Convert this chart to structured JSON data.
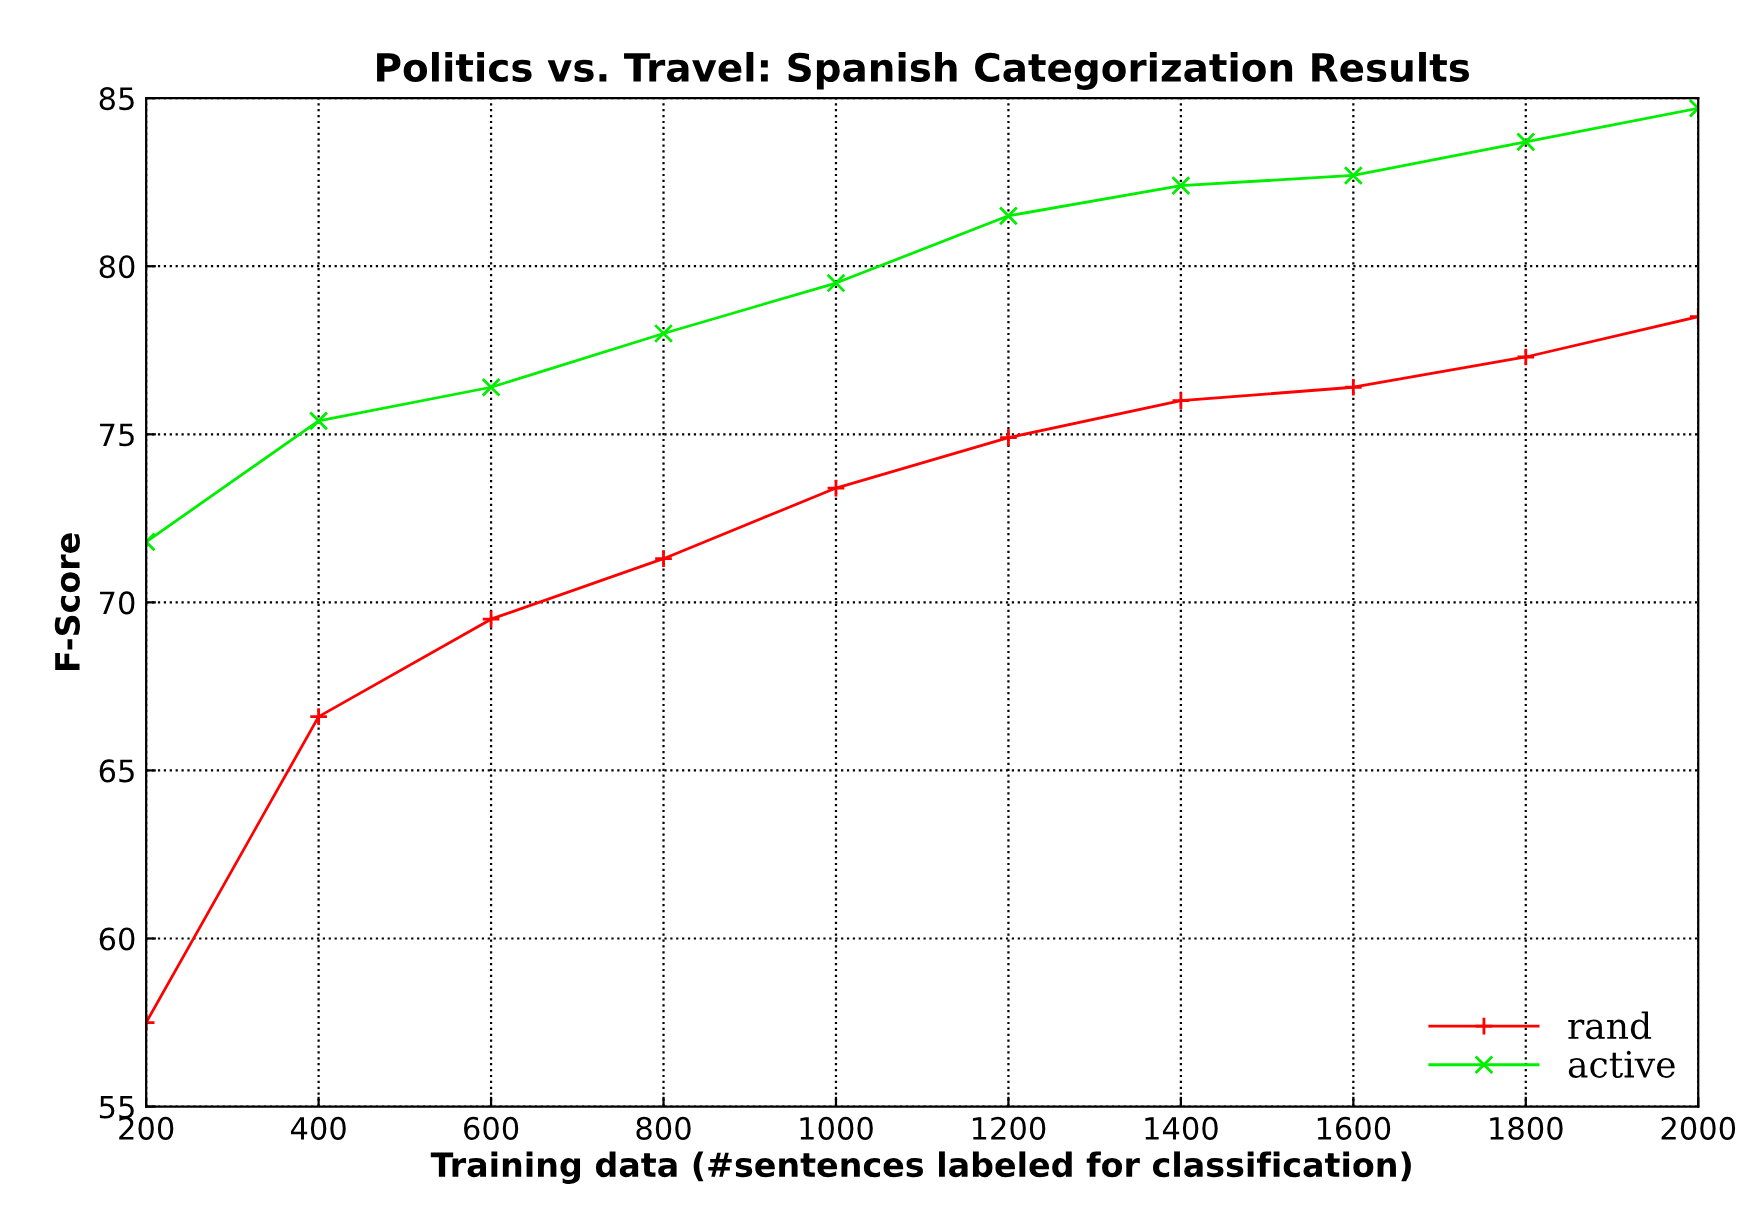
{
  "chart_data": {
    "type": "line",
    "title": "Politics vs. Travel: Spanish Categorization Results",
    "xlabel": "Training data (#sentences labeled for classification)",
    "ylabel": "F-Score",
    "x": [
      200,
      400,
      600,
      800,
      1000,
      1200,
      1400,
      1600,
      1800,
      2000
    ],
    "series": [
      {
        "name": "rand",
        "color": "#ff0000",
        "marker": "plus",
        "values": [
          57.5,
          66.6,
          69.5,
          71.3,
          73.4,
          74.9,
          76.0,
          76.4,
          77.3,
          78.5
        ]
      },
      {
        "name": "active",
        "color": "#00ee00",
        "marker": "cross",
        "values": [
          71.8,
          75.4,
          76.4,
          78.0,
          79.5,
          81.5,
          82.4,
          82.7,
          83.7,
          84.7
        ]
      }
    ],
    "xlim": [
      200,
      2000
    ],
    "ylim": [
      55,
      85
    ],
    "xticks": [
      200,
      400,
      600,
      800,
      1000,
      1200,
      1400,
      1600,
      1800,
      2000
    ],
    "yticks": [
      55,
      60,
      65,
      70,
      75,
      80,
      85
    ],
    "grid": true,
    "legend": "bottom right",
    "line_style": "solid"
  }
}
